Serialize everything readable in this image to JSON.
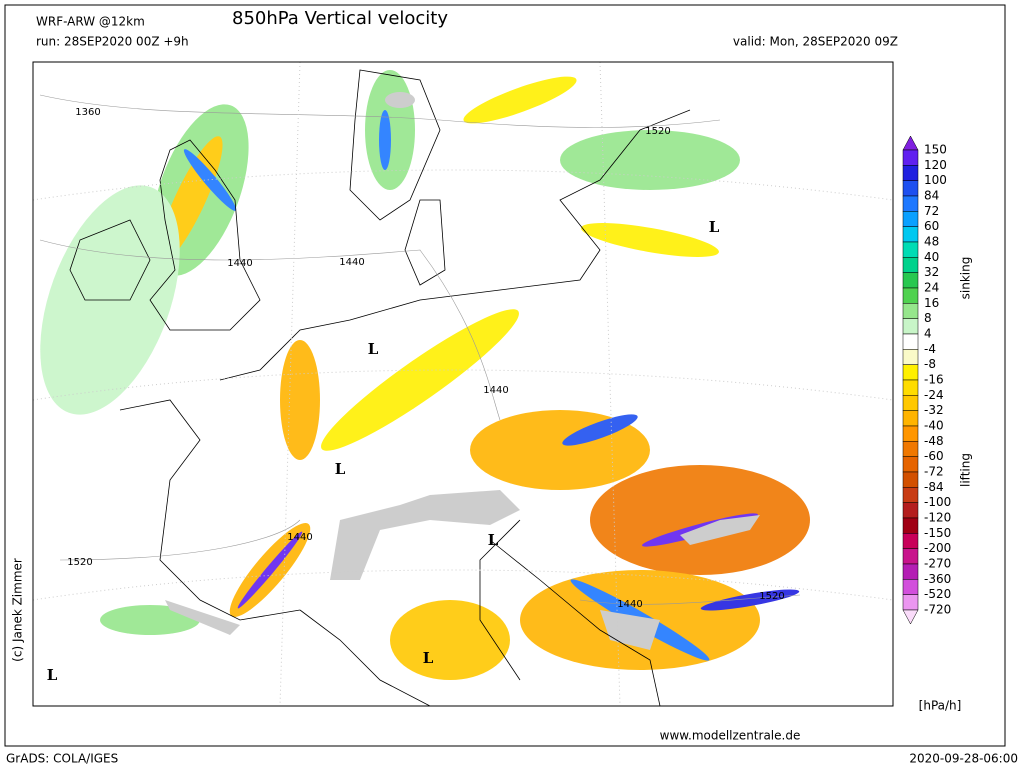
{
  "header": {
    "model": "WRF-ARW @12km",
    "title": "850hPa Vertical velocity",
    "run": "run: 28SEP2020 00Z +9h",
    "valid": "valid: Mon, 28SEP2020 09Z"
  },
  "map_labels": [
    "1360",
    "1440",
    "1440",
    "1520",
    "1440",
    "1440",
    "1520",
    "1440",
    "1520",
    "L",
    "L",
    "L",
    "L",
    "L",
    "L"
  ],
  "legend": {
    "labels": [
      "150",
      "120",
      "100",
      "84",
      "72",
      "60",
      "48",
      "40",
      "32",
      "24",
      "16",
      "8",
      "4",
      "-4",
      "-8",
      "-16",
      "-24",
      "-32",
      "-40",
      "-48",
      "-60",
      "-72",
      "-84",
      "-100",
      "-120",
      "-150",
      "-200",
      "-270",
      "-360",
      "-520",
      "-720"
    ],
    "colors": [
      "#8020e0",
      "#6020f0",
      "#2020e0",
      "#1e50f0",
      "#1e78ff",
      "#0aa0ff",
      "#00c8f0",
      "#00dcb4",
      "#00d28c",
      "#28c850",
      "#50d250",
      "#96e68c",
      "#c8f5c8",
      "#ffffff",
      "#fafac8",
      "#fff000",
      "#ffdc00",
      "#ffc800",
      "#ffb400",
      "#ff9600",
      "#f07800",
      "#e66400",
      "#d25000",
      "#c83c14",
      "#b41e1e",
      "#a00014",
      "#c8005a",
      "#c8148c",
      "#b41eb4",
      "#d250dc",
      "#eb96f0",
      "#fadcfa"
    ],
    "upper_label": "sinking",
    "lower_label": "lifting",
    "unit": "[hPa/h]"
  },
  "footer": {
    "copyright": "(c) Janek Zimmer",
    "website": "www.modellzentrale.de",
    "software": "GrADS: COLA/IGES",
    "timestamp": "2020-09-28-06:00"
  }
}
